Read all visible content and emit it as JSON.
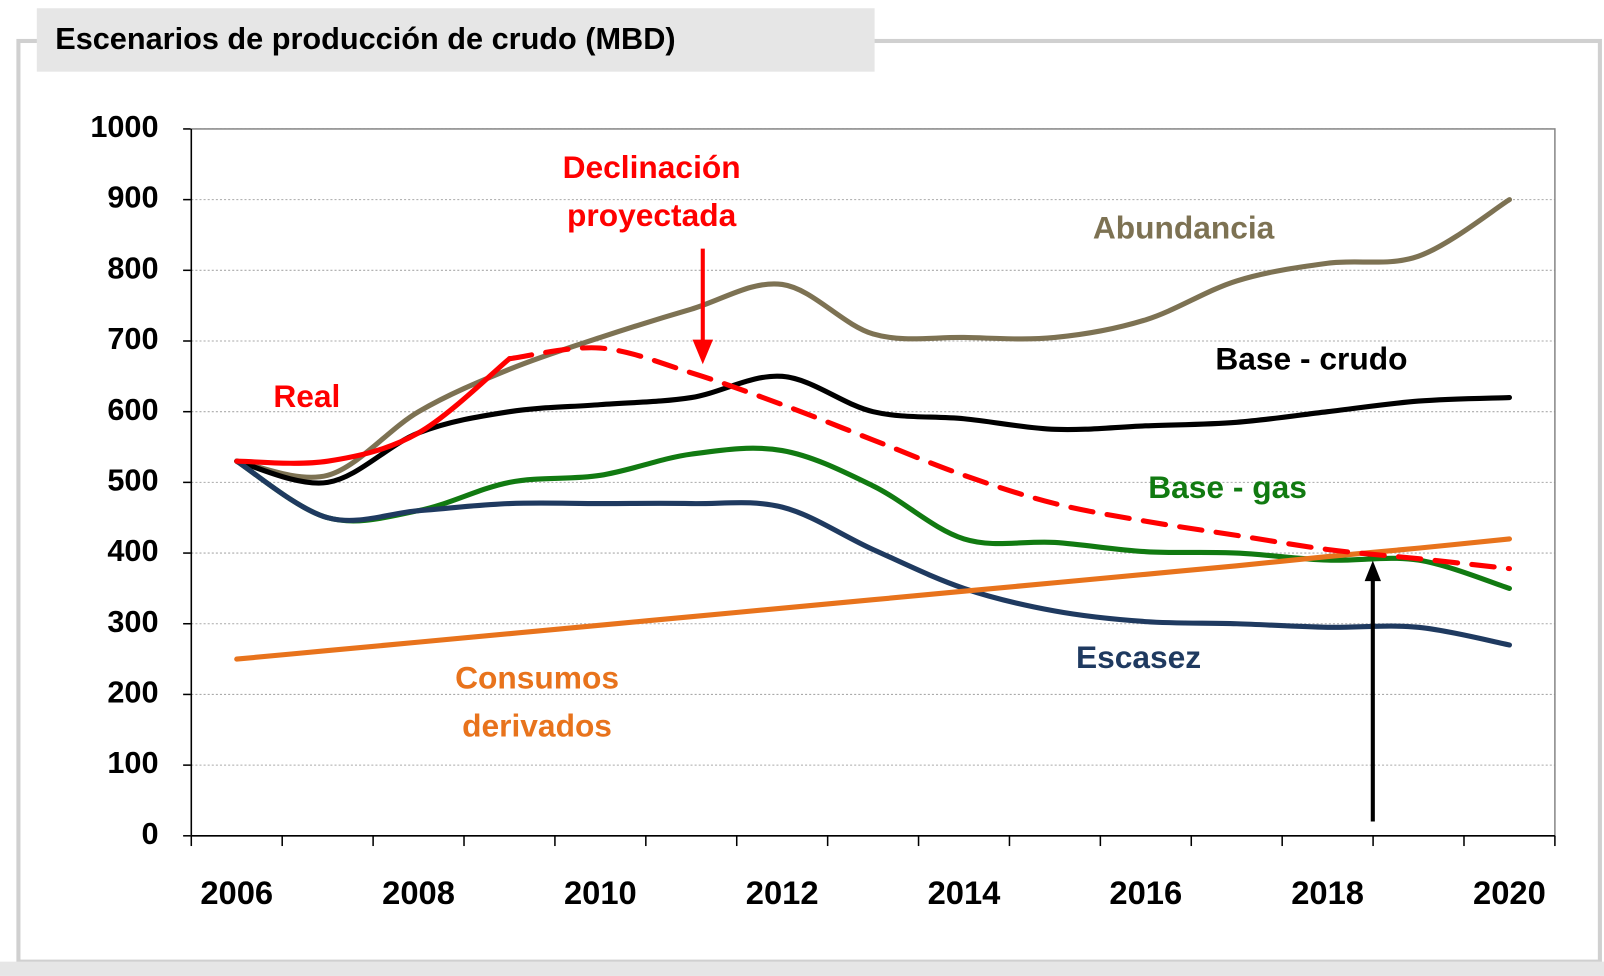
{
  "chart_data": {
    "type": "line",
    "title": "Escenarios de producción de crudo (MBD)",
    "categories": [
      "2006",
      null,
      "2008",
      null,
      "2010",
      null,
      "2012",
      null,
      "2014",
      null,
      "2016",
      null,
      "2018",
      null,
      "2020"
    ],
    "ylim": [
      0,
      1000
    ],
    "yticks": [
      0,
      100,
      200,
      300,
      400,
      500,
      600,
      700,
      800,
      900,
      1000
    ],
    "grid": true,
    "series": [
      {
        "name": "Abundancia",
        "color": "#7d7253",
        "line_style": "solid",
        "values": [
          530,
          510,
          600,
          660,
          705,
          745,
          780,
          710,
          705,
          705,
          730,
          785,
          810,
          820,
          900
        ]
      },
      {
        "name": "Base - crudo",
        "color": "#000000",
        "line_style": "solid",
        "values": [
          530,
          500,
          570,
          600,
          610,
          620,
          650,
          600,
          590,
          575,
          580,
          585,
          600,
          615,
          620
        ]
      },
      {
        "name": "Base - gas",
        "color": "#117a11",
        "line_style": "solid",
        "values": [
          530,
          450,
          460,
          500,
          510,
          540,
          545,
          495,
          420,
          415,
          402,
          400,
          390,
          390,
          350
        ]
      },
      {
        "name": "Escasez",
        "color": "#1f3a60",
        "line_style": "solid",
        "values": [
          530,
          450,
          460,
          470,
          470,
          470,
          465,
          405,
          350,
          318,
          303,
          300,
          295,
          295,
          270
        ]
      },
      {
        "name": "Consumos derivados",
        "color": "#e8731c",
        "line_style": "solid",
        "values": [
          250,
          262,
          274,
          286,
          298,
          310,
          322,
          334,
          346,
          358,
          370,
          382,
          395,
          407,
          420
        ]
      },
      {
        "name": "Declinación proyectada",
        "color": "#ff0000",
        "line_style": "dashed",
        "values": [
          null,
          null,
          null,
          675,
          690,
          655,
          610,
          560,
          510,
          470,
          445,
          425,
          405,
          392,
          378
        ]
      },
      {
        "name": "Real",
        "color": "#ff0000",
        "line_style": "solid",
        "values": [
          530,
          530,
          570,
          675,
          null,
          null,
          null,
          null,
          null,
          null,
          null,
          null,
          null,
          null,
          null
        ]
      }
    ]
  }
}
